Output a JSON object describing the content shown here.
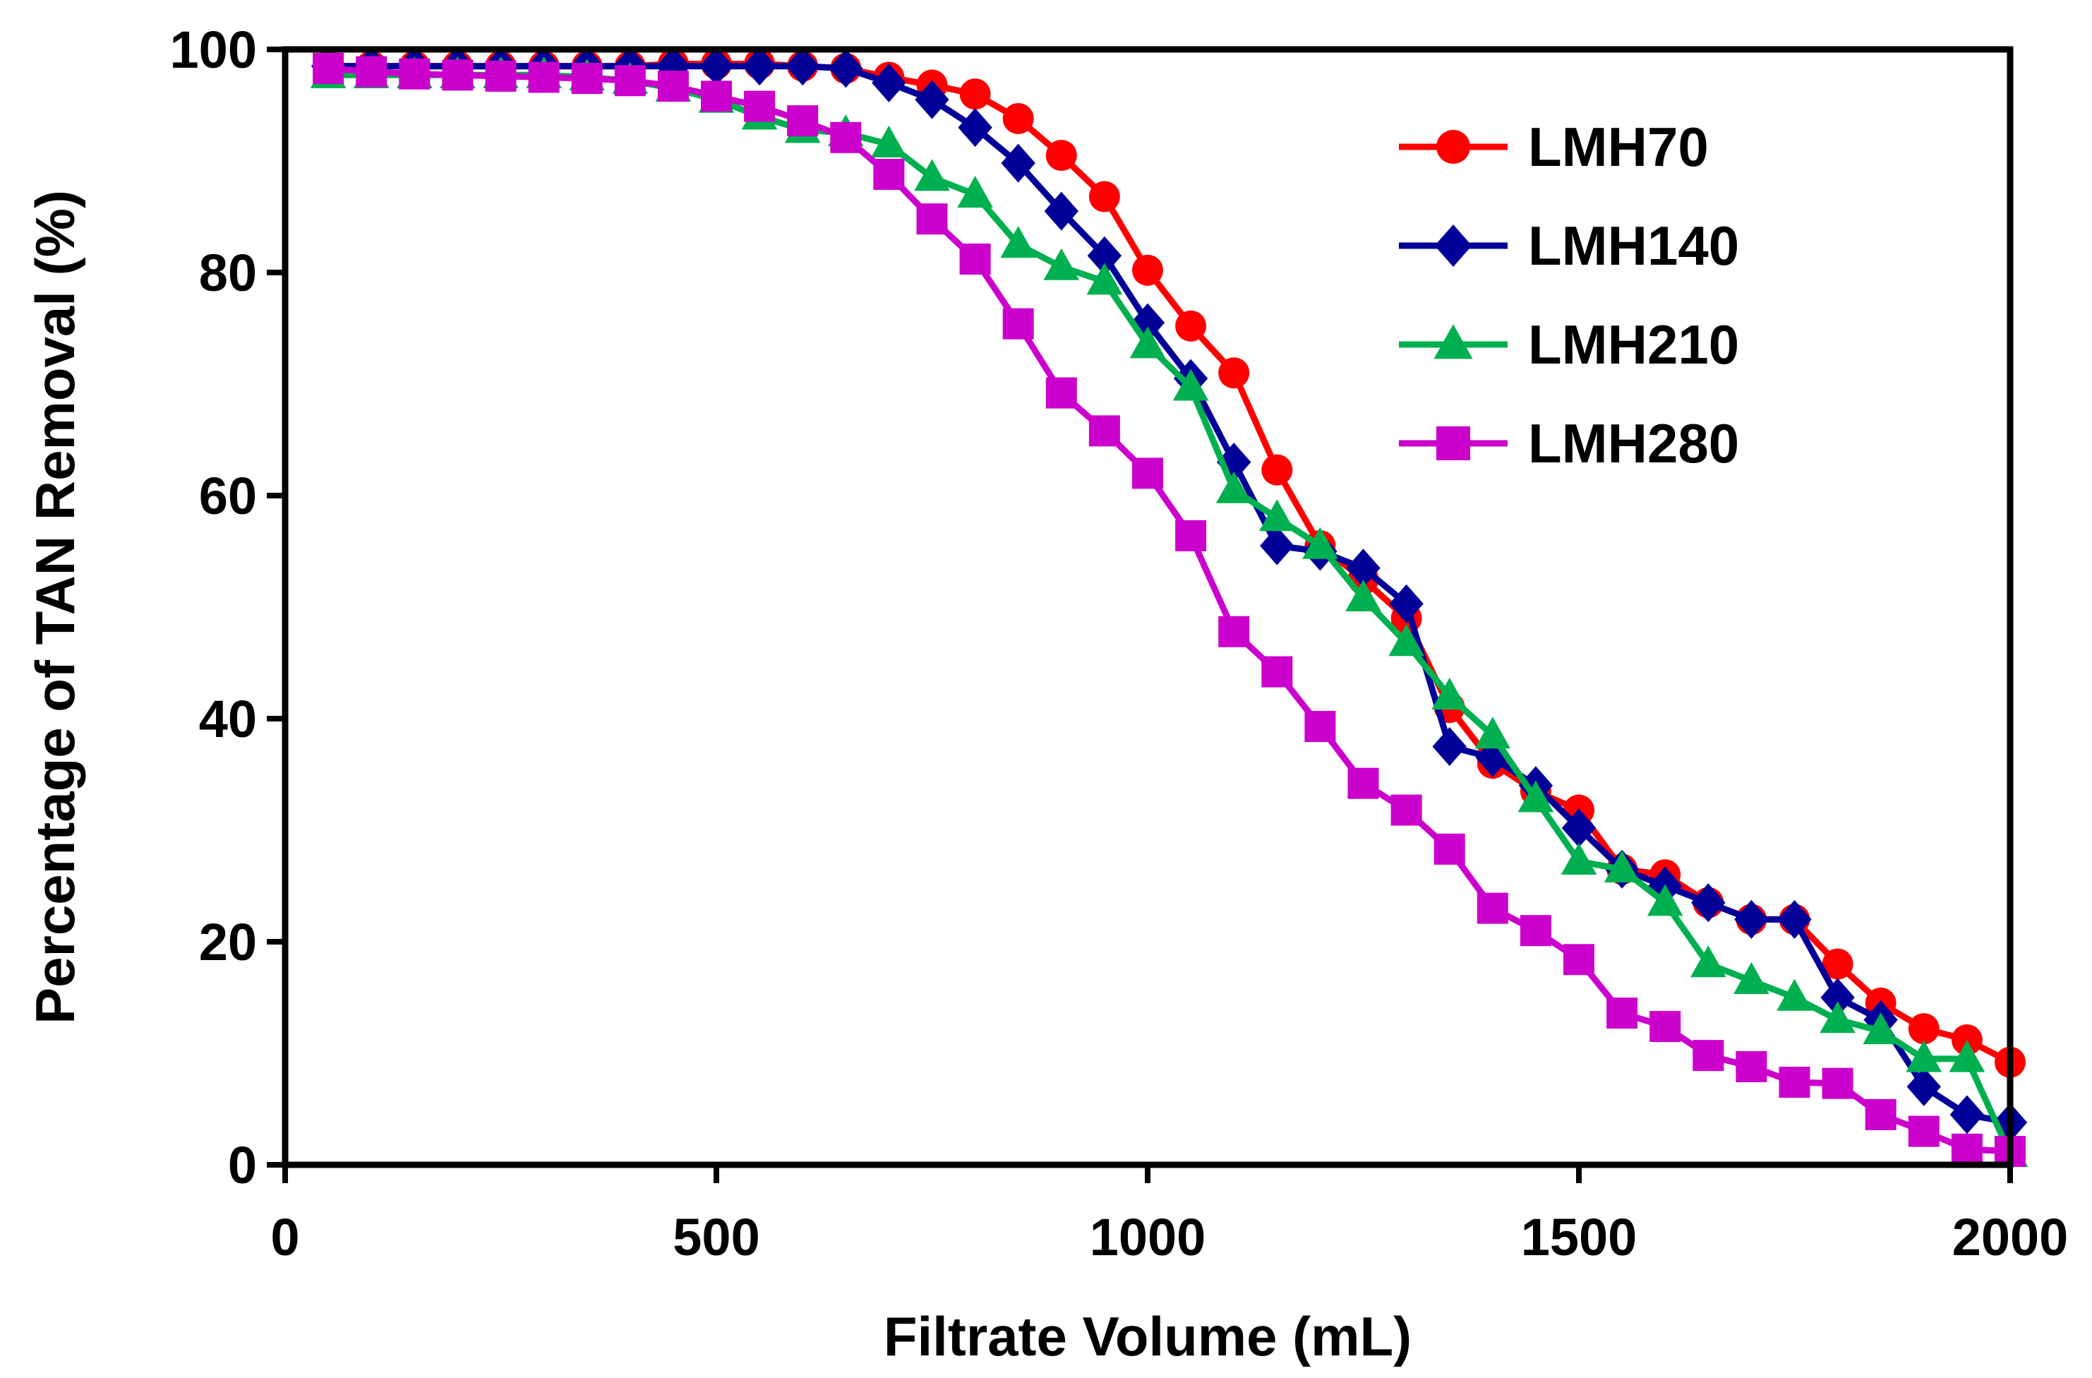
{
  "chart_data": {
    "type": "line",
    "title": "",
    "xlabel": "Filtrate Volume (mL)",
    "ylabel": "Percentage of TAN Removal (%)",
    "xlim": [
      0,
      2000
    ],
    "ylim": [
      0,
      100
    ],
    "xticks": [
      0,
      500,
      1000,
      1500,
      2000
    ],
    "yticks": [
      0,
      20,
      40,
      60,
      80,
      100
    ],
    "grid": false,
    "legend_position": "top-right",
    "x": [
      50,
      100,
      150,
      200,
      250,
      300,
      350,
      400,
      450,
      500,
      550,
      600,
      650,
      700,
      750,
      800,
      850,
      900,
      950,
      1000,
      1050,
      1100,
      1150,
      1200,
      1250,
      1300,
      1350,
      1400,
      1450,
      1500,
      1550,
      1600,
      1650,
      1700,
      1750,
      1800,
      1850,
      1900,
      1950,
      2000
    ],
    "series": [
      {
        "name": "LMH70",
        "color": "#ff0000",
        "marker": "circle",
        "values": [
          98.5,
          98.5,
          98.5,
          98.5,
          98.5,
          98.5,
          98.5,
          98.5,
          98.7,
          98.7,
          98.7,
          98.5,
          98.3,
          97.5,
          96.8,
          96.0,
          93.8,
          90.5,
          86.8,
          80.2,
          75.2,
          71.0,
          62.3,
          55.5,
          52.5,
          49.0,
          41.0,
          36.0,
          33.5,
          31.8,
          26.5,
          26.0,
          23.5,
          22.0,
          22.0,
          18.0,
          14.5,
          12.2,
          11.2,
          9.2
        ]
      },
      {
        "name": "LMH140",
        "color": "#000099",
        "marker": "diamond",
        "values": [
          98.5,
          98.5,
          98.5,
          98.5,
          98.5,
          98.5,
          98.5,
          98.5,
          98.5,
          98.5,
          98.5,
          98.5,
          98.3,
          97.0,
          95.5,
          93.0,
          89.8,
          85.5,
          81.5,
          75.5,
          70.5,
          63.0,
          55.5,
          55.0,
          53.5,
          50.3,
          37.5,
          36.5,
          34.0,
          30.2,
          26.5,
          25.0,
          23.5,
          22.0,
          22.0,
          15.0,
          13.0,
          7.0,
          4.5,
          3.8
        ]
      },
      {
        "name": "LMH210",
        "color": "#00b050",
        "marker": "triangle",
        "values": [
          97.7,
          97.7,
          97.7,
          97.7,
          97.7,
          97.7,
          97.5,
          97.2,
          96.5,
          95.5,
          94.0,
          92.8,
          92.5,
          91.5,
          88.5,
          87.0,
          82.5,
          80.5,
          79.2,
          73.5,
          69.7,
          60.5,
          58.0,
          55.5,
          50.8,
          46.8,
          42.0,
          38.5,
          32.8,
          27.2,
          26.5,
          23.5,
          18.0,
          16.5,
          15.0,
          13.0,
          12.0,
          9.5,
          9.5,
          1.0
        ]
      },
      {
        "name": "LMH280",
        "color": "#cc00cc",
        "marker": "square",
        "values": [
          98.3,
          98.0,
          97.8,
          97.7,
          97.6,
          97.5,
          97.4,
          97.2,
          96.7,
          95.8,
          94.9,
          93.6,
          92.1,
          88.8,
          84.8,
          81.2,
          75.4,
          69.2,
          65.8,
          62.0,
          56.4,
          47.8,
          44.2,
          39.3,
          34.2,
          31.8,
          28.3,
          23.0,
          21.0,
          18.4,
          13.6,
          12.4,
          9.8,
          8.8,
          7.4,
          7.3,
          4.5,
          3.0,
          1.4,
          1.2
        ]
      }
    ]
  }
}
